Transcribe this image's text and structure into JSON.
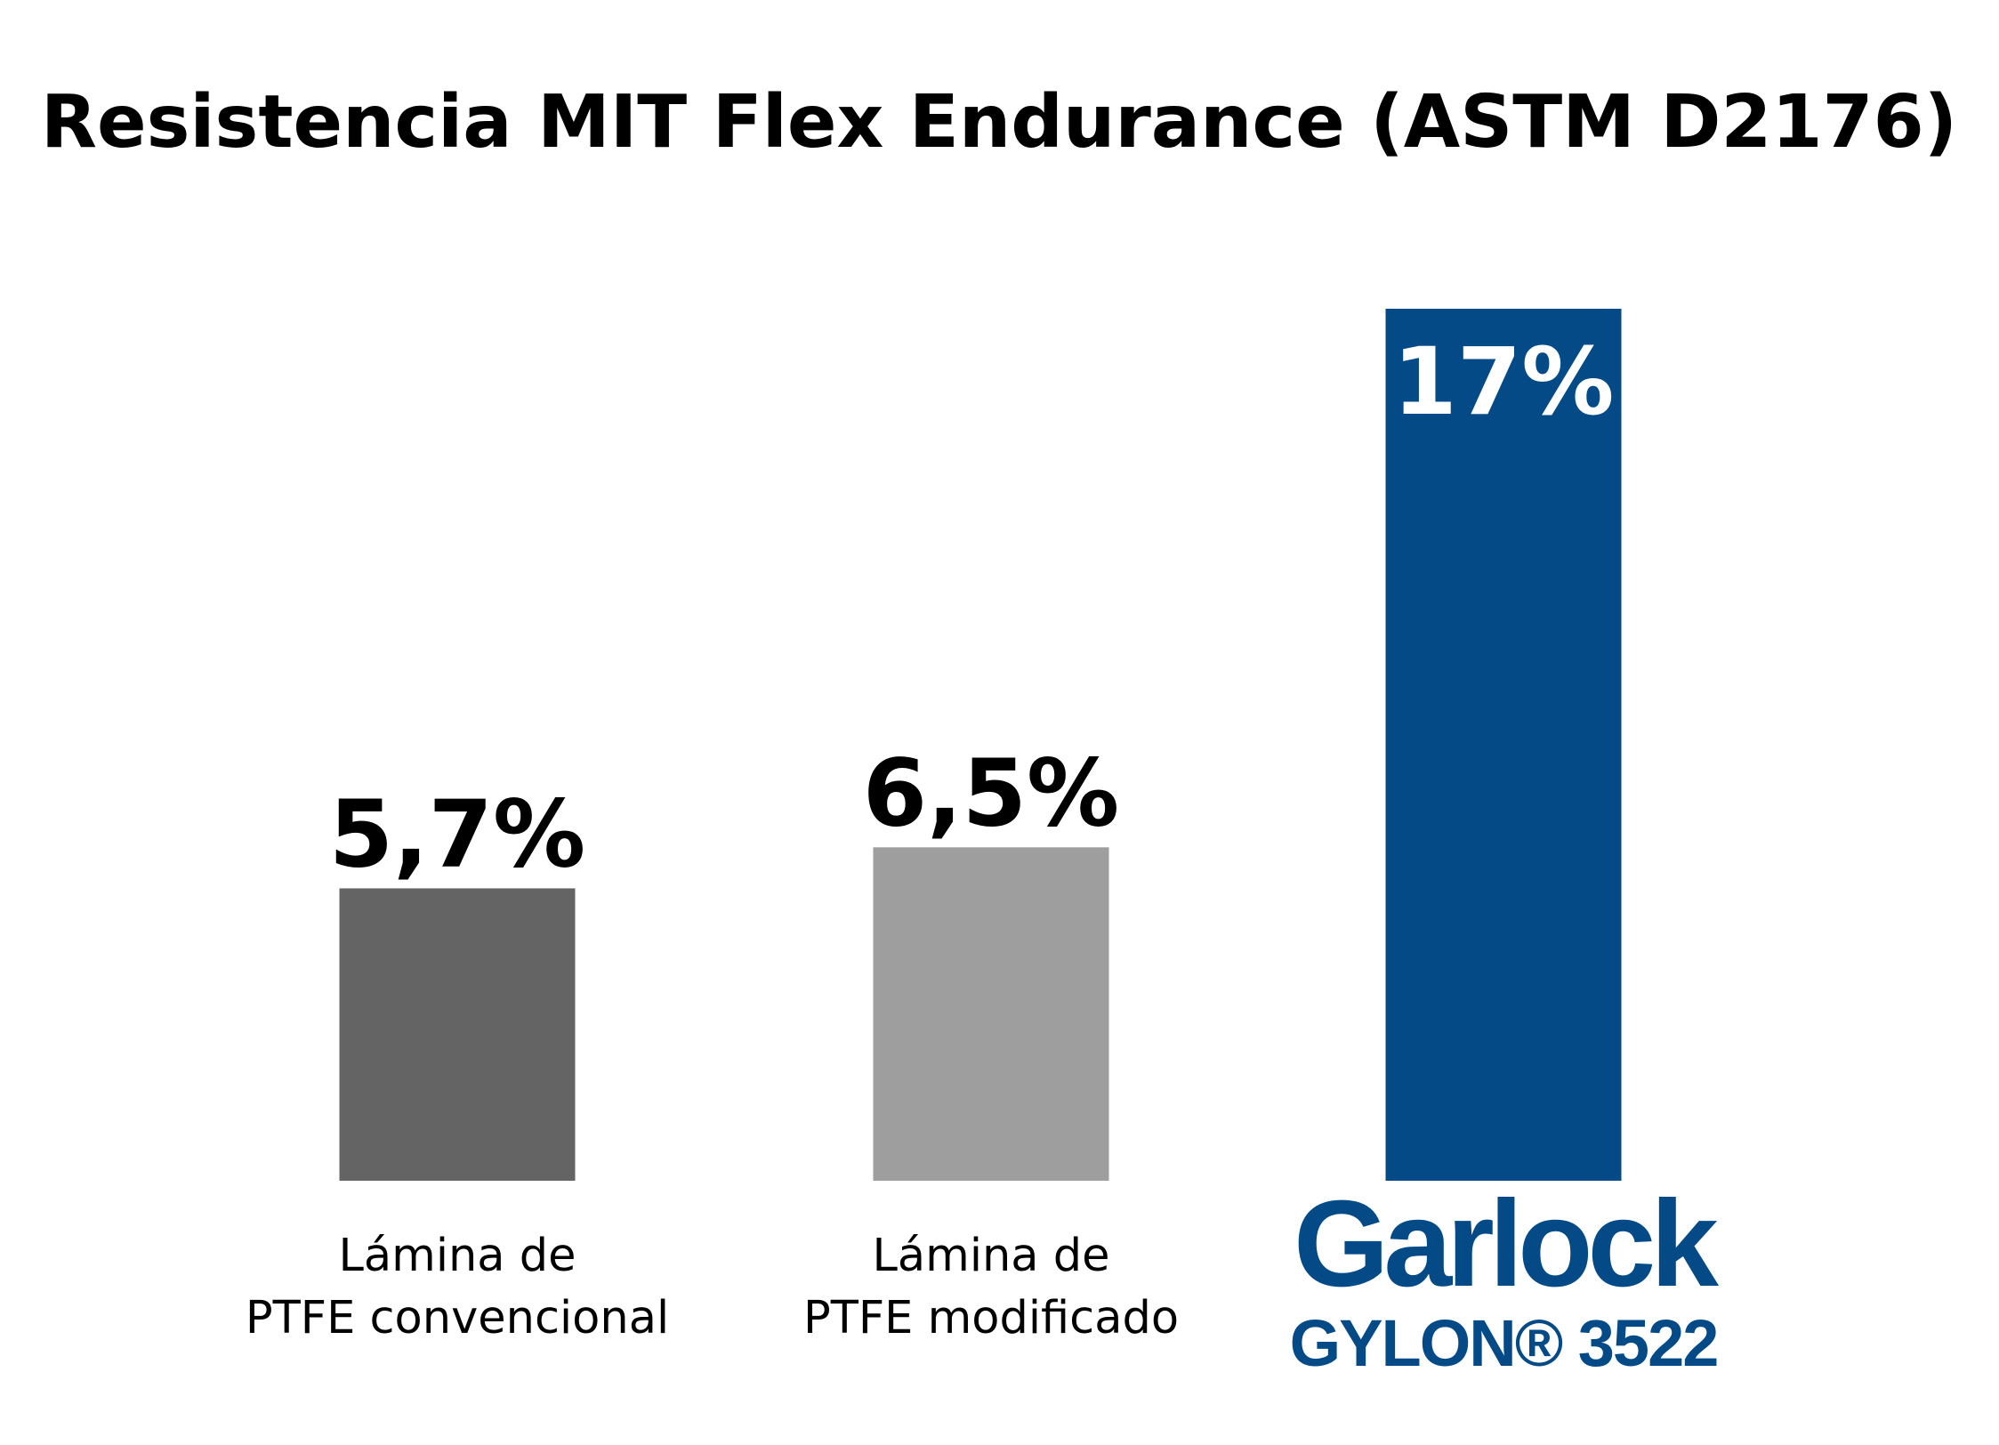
{
  "chart_data": {
    "type": "bar",
    "title": "Resistencia MIT Flex Endurance (ASTM D2176)",
    "ylim": [
      0,
      17
    ],
    "grid": false,
    "categories": [
      [
        "Lámina de",
        "PTFE convencional"
      ],
      [
        "Lámina de",
        "PTFE modificado"
      ],
      [
        "Garlock",
        "GYLON® 3522"
      ]
    ],
    "values": [
      5.7,
      6.5,
      17
    ],
    "value_labels": [
      "5,7%",
      "6,5%",
      "17%"
    ],
    "colors": [
      "#646464",
      "#9e9e9e",
      "#044a87"
    ],
    "value_label_colors": [
      "#000000",
      "#000000",
      "#ffffff"
    ],
    "value_label_positions": [
      "above",
      "above",
      "inside-top"
    ],
    "brand_color": "#044a87"
  }
}
